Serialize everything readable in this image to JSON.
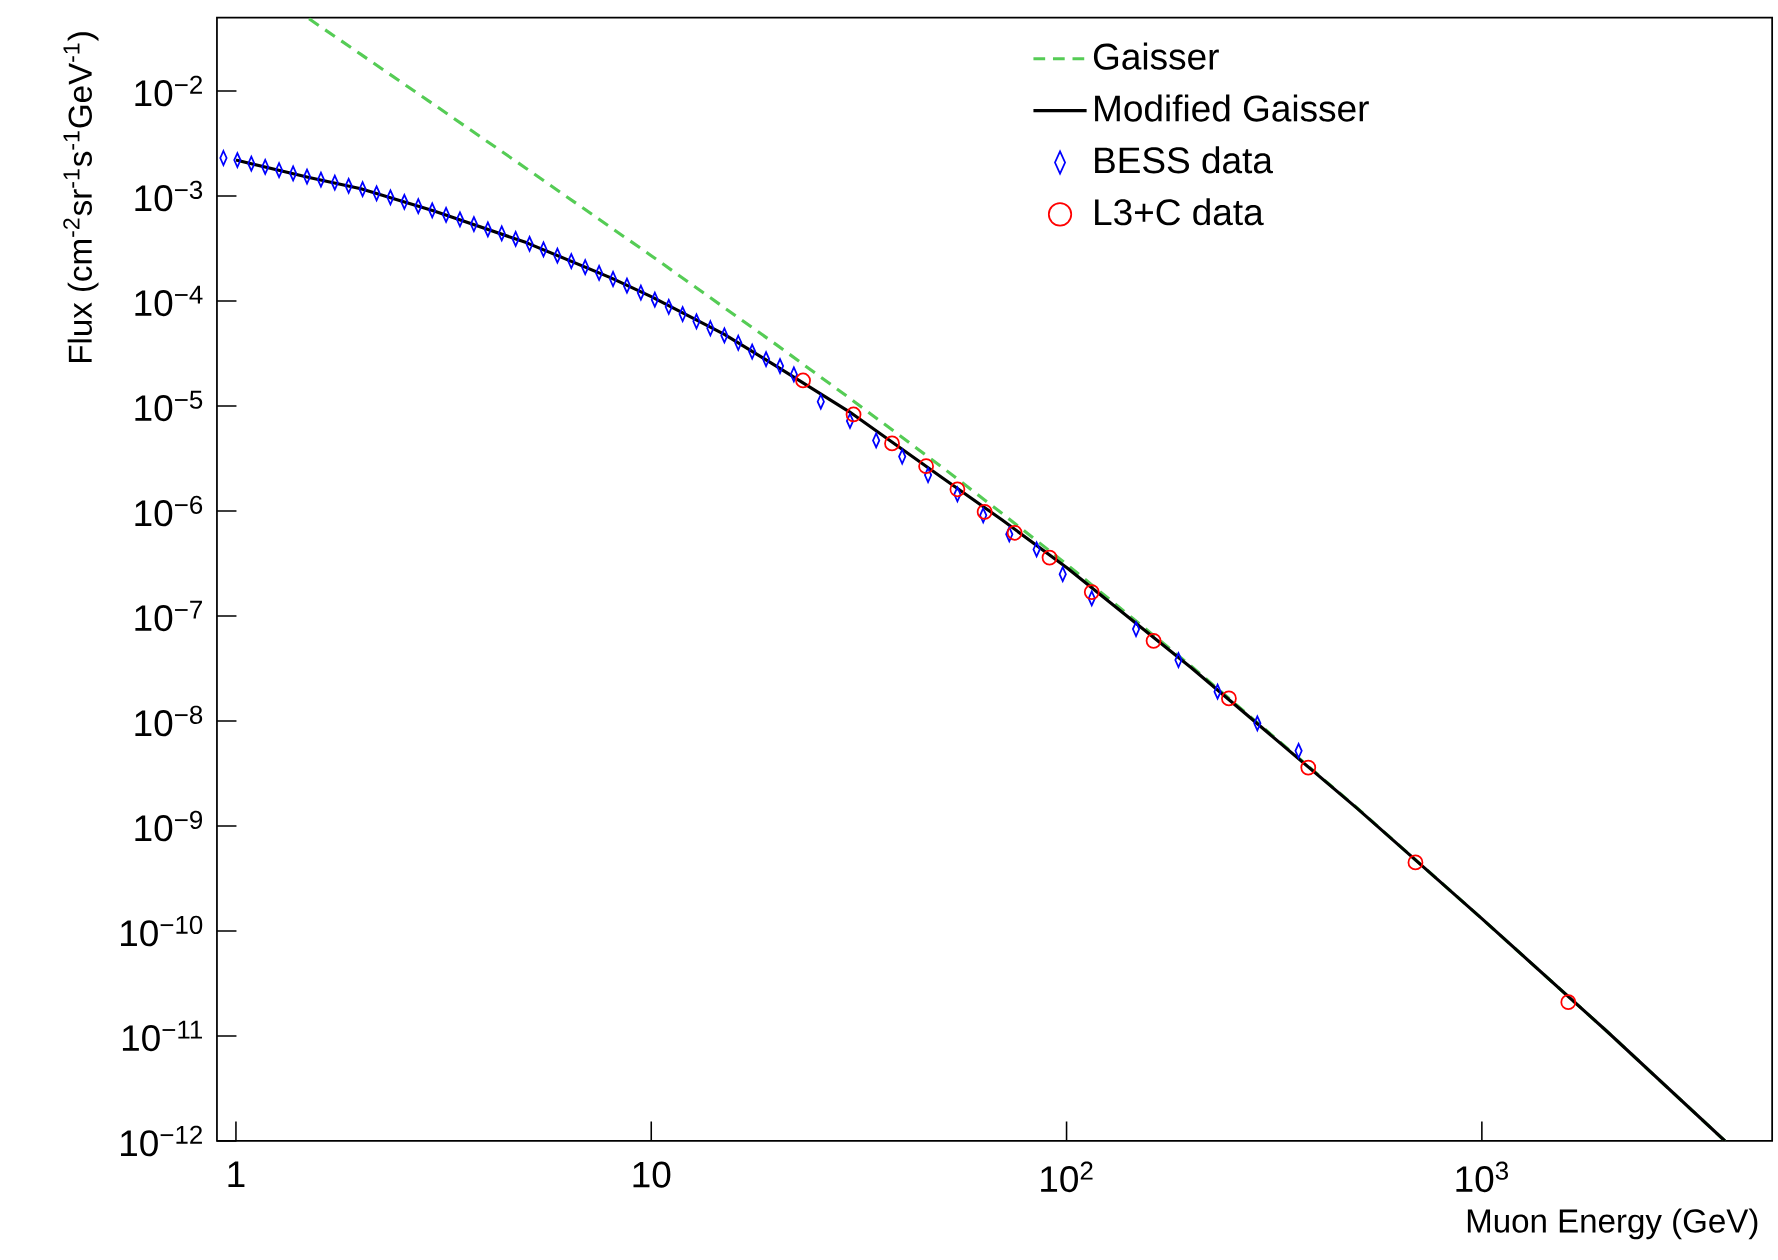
{
  "chart_data": {
    "type": "line",
    "xlabel": "Muon Energy (GeV)",
    "ylabel": "Flux (cm$^{-2}$sr$^{-1}$s$^{-1}$GeV$^{-1}$)",
    "log": "xy",
    "legend": "top right",
    "xlim": [
      0.9,
      5000
    ],
    "ylim": [
      1e-12,
      0.05
    ],
    "xticks": [
      1,
      10,
      {
        "value": 100,
        "label": "10$^{2}$"
      },
      {
        "value": 1000,
        "label": "10$^{3}$"
      }
    ],
    "yticks": [
      {
        "value": 1e-12,
        "label": "10$^{−12}$"
      },
      {
        "value": 1e-11,
        "label": "10$^{−11}$"
      },
      {
        "value": 1e-10,
        "label": "10$^{−10}$"
      },
      {
        "value": 1e-09,
        "label": "10$^{−9}$"
      },
      {
        "value": 1e-08,
        "label": "10$^{−8}$"
      },
      {
        "value": 1e-07,
        "label": "10$^{−7}$"
      },
      {
        "value": 1e-06,
        "label": "10$^{−6}$"
      },
      {
        "value": 1e-05,
        "label": "10$^{−5}$"
      },
      {
        "value": 0.0001,
        "label": "10$^{−4}$"
      },
      {
        "value": 0.001,
        "label": "10$^{−3}$"
      },
      {
        "value": 0.01,
        "label": "10$^{−2}$"
      }
    ],
    "series": [
      {
        "name": "Gaisser",
        "line_style": "dashed",
        "marker": "none",
        "color": "#55cc55",
        "x": [
          1.5,
          2,
          3,
          5,
          10,
          20,
          30,
          50,
          70,
          100,
          200,
          500,
          1000,
          2000,
          3850
        ],
        "values": [
          0.0487,
          0.0223,
          0.0074,
          0.00183,
          0.00027,
          3.84e-05,
          1.19e-05,
          2.64e-06,
          9.46e-07,
          3.11e-07,
          3.31e-08,
          1.49e-09,
          1.31e-10,
          1.11e-11,
          1e-12
        ]
      },
      {
        "name": "Modified Gaisser",
        "line_style": "solid",
        "marker": "none",
        "color": "#000000",
        "x": [
          1,
          1.5,
          2,
          3,
          5,
          8,
          10,
          15,
          20,
          30,
          50,
          70,
          100,
          200,
          500,
          1000,
          2000,
          3850
        ],
        "values": [
          0.0022,
          0.0015,
          0.00117,
          0.00072,
          0.00036,
          0.000166,
          0.00011,
          4.8e-05,
          2.4e-05,
          8.8e-06,
          2.1e-06,
          8.2e-07,
          2.9e-07,
          3.2e-08,
          1.48e-09,
          1.31e-10,
          1.11e-11,
          1e-12
        ]
      },
      {
        "name": "BESS data",
        "type": "scatter",
        "marker": "diamond",
        "color": "#0000ff",
        "x": [
          0.933,
          1.008,
          1.089,
          1.176,
          1.27,
          1.373,
          1.483,
          1.602,
          1.73,
          1.868,
          2.018,
          2.181,
          2.355,
          2.544,
          2.748,
          2.969,
          3.206,
          3.463,
          3.741,
          4.042,
          4.365,
          4.715,
          5.093,
          5.502,
          5.943,
          6.42,
          6.934,
          7.49,
          8.091,
          8.74,
          9.441,
          10.2,
          11.02,
          11.9,
          12.85,
          13.88,
          15.0,
          16.2,
          17.5,
          18.9,
          20.42,
          22.05,
          25.6,
          30.1,
          34.8,
          40.2,
          46.4,
          54.6,
          63.0,
          72.8,
          84.7,
          97.9,
          115,
          147,
          186,
          231,
          288,
          362
        ],
        "values": [
          0.0023,
          0.0022,
          0.00203,
          0.00189,
          0.00176,
          0.00164,
          0.00153,
          0.00143,
          0.00134,
          0.00125,
          0.00116,
          0.00106,
          0.00097,
          0.00088,
          0.0008,
          0.00073,
          0.00066,
          0.0006,
          0.00054,
          0.00048,
          0.00044,
          0.00039,
          0.00035,
          0.00031,
          0.00027,
          0.00024,
          0.00021,
          0.000185,
          0.000162,
          0.00014,
          0.00012,
          0.000103,
          8.8e-05,
          7.5e-05,
          6.4e-05,
          5.5e-05,
          4.7e-05,
          4e-05,
          3.3e-05,
          2.8e-05,
          2.4e-05,
          2e-05,
          1.1e-05,
          7.2e-06,
          4.7e-06,
          3.3e-06,
          2.2e-06,
          1.44e-06,
          9.1e-07,
          6e-07,
          4.3e-07,
          2.5e-07,
          1.47e-07,
          7.5e-08,
          3.8e-08,
          1.9e-08,
          9.5e-09,
          5.2e-09
        ]
      },
      {
        "name": "L3+C data",
        "type": "scatter",
        "marker": "circle",
        "color": "#ff0000",
        "x": [
          23.2,
          30.7,
          38.0,
          45.9,
          54.6,
          63.5,
          75.0,
          91.0,
          115,
          162,
          246,
          382,
          692,
          1615
        ],
        "values": [
          1.75e-05,
          8.3e-06,
          4.4e-06,
          2.67e-06,
          1.61e-06,
          9.8e-07,
          6.2e-07,
          3.6e-07,
          1.69e-07,
          5.8e-08,
          1.64e-08,
          3.6e-09,
          4.5e-10,
          2.1e-11
        ]
      }
    ]
  }
}
